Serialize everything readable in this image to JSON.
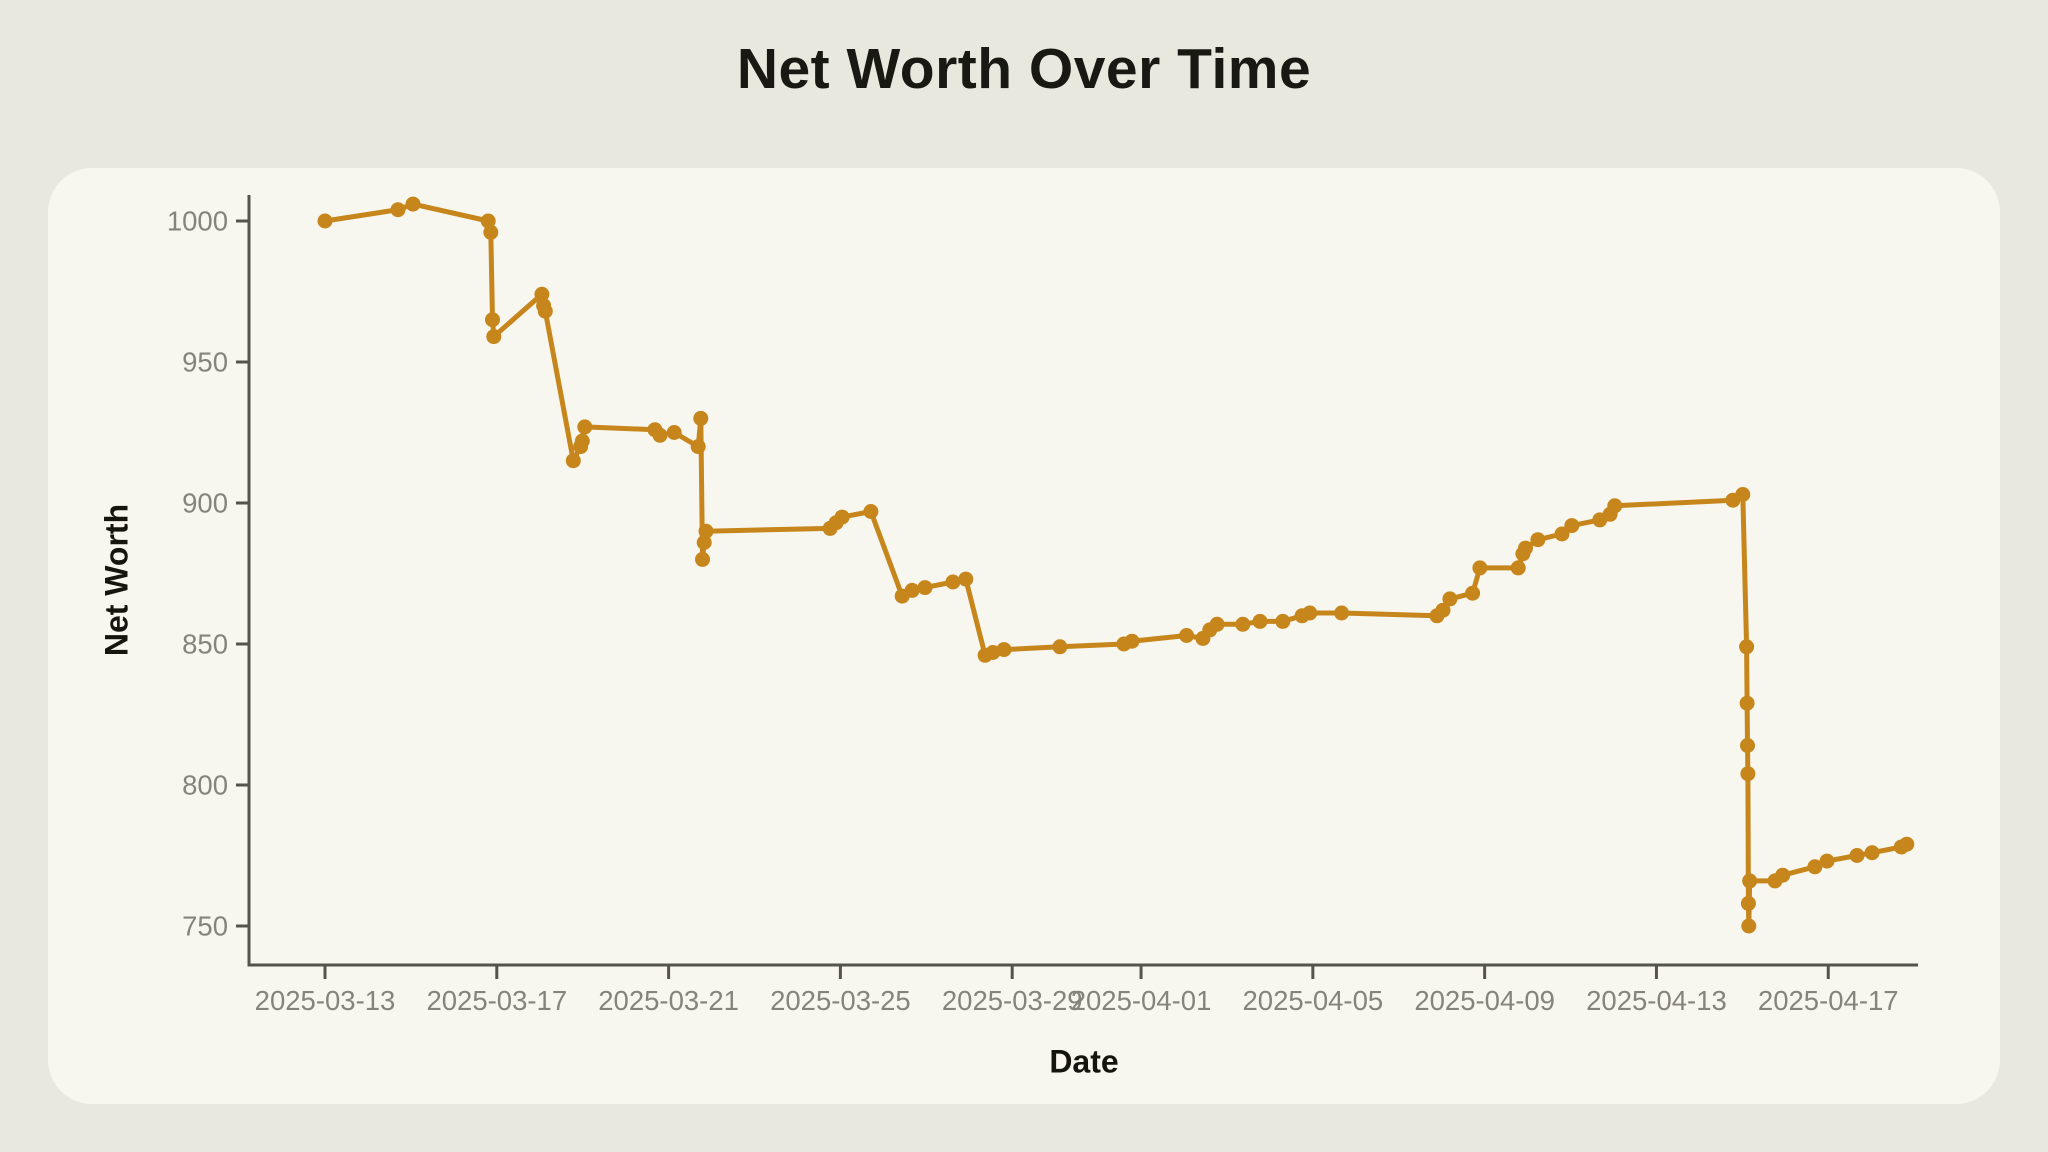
{
  "page": {
    "title": "Net Worth Over Time"
  },
  "chart_data": {
    "type": "line",
    "title": "Net Worth Over Time",
    "xlabel": "Date",
    "ylabel": "Net Worth",
    "legend": null,
    "grid": false,
    "line_color": "#C6861C",
    "marker_color": "#C6861C",
    "axis_color": "#55544C",
    "tick_label_color": "#85847B",
    "panel_color": "#F8F7EF",
    "background_color": "#E9E8DF",
    "y_ticks": [
      750,
      800,
      850,
      900,
      950,
      1000
    ],
    "x_ticks": [
      {
        "label": "2025-03-13",
        "day": 0
      },
      {
        "label": "2025-03-17",
        "day": 4
      },
      {
        "label": "2025-03-21",
        "day": 8
      },
      {
        "label": "2025-03-25",
        "day": 12
      },
      {
        "label": "2025-03-29",
        "day": 16
      },
      {
        "label": "2025-04-01",
        "day": 19
      },
      {
        "label": "2025-04-05",
        "day": 23
      },
      {
        "label": "2025-04-09",
        "day": 27
      },
      {
        "label": "2025-04-13",
        "day": 31
      },
      {
        "label": "2025-04-17",
        "day": 35
      }
    ],
    "x_domain_days": [
      -1.77,
      37.1
    ],
    "ylim": [
      736,
      1009
    ],
    "points_format": "[days_since_2025-03-13, net_worth]",
    "points": [
      [
        0.0,
        1000
      ],
      [
        1.7,
        1004
      ],
      [
        2.05,
        1006
      ],
      [
        3.8,
        1000
      ],
      [
        3.86,
        996
      ],
      [
        3.9,
        965
      ],
      [
        3.93,
        959
      ],
      [
        5.05,
        974
      ],
      [
        5.09,
        970
      ],
      [
        5.13,
        968
      ],
      [
        5.78,
        915
      ],
      [
        5.95,
        920
      ],
      [
        5.99,
        922
      ],
      [
        6.05,
        927
      ],
      [
        7.68,
        926
      ],
      [
        7.8,
        924
      ],
      [
        8.13,
        925
      ],
      [
        8.69,
        920
      ],
      [
        8.75,
        930
      ],
      [
        8.79,
        880
      ],
      [
        8.83,
        886
      ],
      [
        8.87,
        890
      ],
      [
        11.76,
        891
      ],
      [
        11.9,
        893
      ],
      [
        12.04,
        895
      ],
      [
        12.71,
        897
      ],
      [
        13.44,
        867
      ],
      [
        13.67,
        869
      ],
      [
        13.97,
        870
      ],
      [
        14.62,
        872
      ],
      [
        14.92,
        873
      ],
      [
        15.37,
        846
      ],
      [
        15.55,
        847
      ],
      [
        15.81,
        848
      ],
      [
        17.11,
        849
      ],
      [
        18.6,
        850
      ],
      [
        18.79,
        851
      ],
      [
        20.06,
        853
      ],
      [
        20.44,
        852
      ],
      [
        20.6,
        855
      ],
      [
        20.77,
        857
      ],
      [
        21.37,
        857
      ],
      [
        21.77,
        858
      ],
      [
        22.3,
        858
      ],
      [
        22.75,
        860
      ],
      [
        22.93,
        861
      ],
      [
        23.67,
        861
      ],
      [
        25.89,
        860
      ],
      [
        26.03,
        862
      ],
      [
        26.19,
        866
      ],
      [
        26.72,
        868
      ],
      [
        26.89,
        877
      ],
      [
        27.78,
        877
      ],
      [
        27.89,
        882
      ],
      [
        27.95,
        884
      ],
      [
        28.24,
        887
      ],
      [
        28.8,
        889
      ],
      [
        29.03,
        892
      ],
      [
        29.68,
        894
      ],
      [
        29.92,
        896
      ],
      [
        30.03,
        899
      ],
      [
        32.78,
        901
      ],
      [
        33.01,
        903
      ],
      [
        33.1,
        849
      ],
      [
        33.11,
        829
      ],
      [
        33.12,
        814
      ],
      [
        33.13,
        804
      ],
      [
        33.14,
        758
      ],
      [
        33.15,
        750
      ],
      [
        33.17,
        766
      ],
      [
        33.76,
        766
      ],
      [
        33.94,
        768
      ],
      [
        34.69,
        771
      ],
      [
        34.97,
        773
      ],
      [
        35.67,
        775
      ],
      [
        36.02,
        776
      ],
      [
        36.7,
        778
      ],
      [
        36.83,
        779
      ]
    ]
  }
}
